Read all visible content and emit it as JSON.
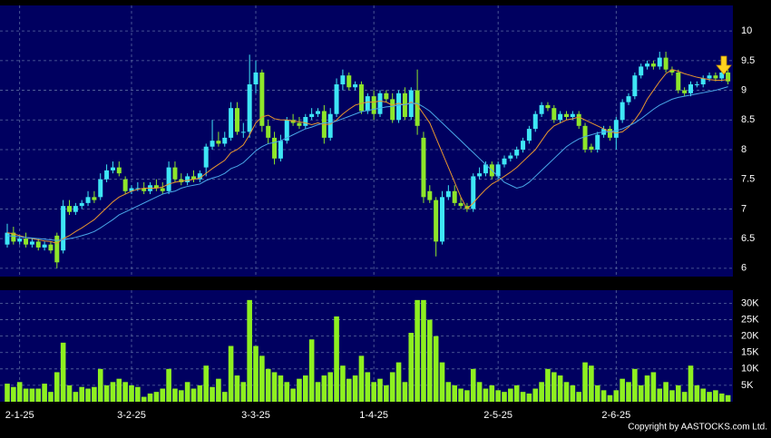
{
  "chart_data": [
    {
      "type": "candlestick",
      "open": [
        6.4,
        6.6,
        6.45,
        6.5,
        6.4,
        6.45,
        6.35,
        6.4,
        6.55,
        6.3,
        7.05,
        6.95,
        7.05,
        7.1,
        7.2,
        7.2,
        7.5,
        7.65,
        7.7,
        7.5,
        7.3,
        7.35,
        7.35,
        7.3,
        7.4,
        7.35,
        7.3,
        7.7,
        7.5,
        7.45,
        7.55,
        7.5,
        7.7,
        8.05,
        8.15,
        8.1,
        8.2,
        8.7,
        8.3,
        8.3,
        9.1,
        9.3,
        8.4,
        8.2,
        7.85,
        8.15,
        8.5,
        8.45,
        8.4,
        8.55,
        8.6,
        8.65,
        8.2,
        8.6,
        9.1,
        9.25,
        9.05,
        9.1,
        8.65,
        8.9,
        8.6,
        8.95,
        8.85,
        8.5,
        8.95,
        8.55,
        9.0,
        8.2,
        7.3,
        7.15,
        6.45,
        7.2,
        7.3,
        7.1,
        7.05,
        7.0,
        7.55,
        7.6,
        7.75,
        7.55,
        7.75,
        7.85,
        7.9,
        8.0,
        8.15,
        8.35,
        8.6,
        8.75,
        8.7,
        8.5,
        8.6,
        8.55,
        8.6,
        8.4,
        8.05,
        8.0,
        8.25,
        8.35,
        8.2,
        8.5,
        8.8,
        8.9,
        9.25,
        9.4,
        9.45,
        9.4,
        9.55,
        9.35,
        9.3,
        9.0,
        8.95,
        9.1,
        9.1,
        9.2,
        9.25,
        9.2,
        9.3
      ],
      "high": [
        6.75,
        6.7,
        6.55,
        6.6,
        6.5,
        6.5,
        6.45,
        6.45,
        6.6,
        7.15,
        7.15,
        7.1,
        7.15,
        7.3,
        7.3,
        7.6,
        7.75,
        7.8,
        7.8,
        7.55,
        7.4,
        7.45,
        7.45,
        7.45,
        7.5,
        7.45,
        7.8,
        7.8,
        7.6,
        7.6,
        7.65,
        7.65,
        8.1,
        8.5,
        8.3,
        8.3,
        8.8,
        8.8,
        8.45,
        9.6,
        9.5,
        9.35,
        8.5,
        8.3,
        8.25,
        8.55,
        8.6,
        8.55,
        8.6,
        8.7,
        8.7,
        8.75,
        8.7,
        9.2,
        9.35,
        9.3,
        9.15,
        9.15,
        8.95,
        9.0,
        9.0,
        9.0,
        8.95,
        9.0,
        9.05,
        9.05,
        9.35,
        8.3,
        7.4,
        7.2,
        7.3,
        7.4,
        7.4,
        7.2,
        7.1,
        7.6,
        7.7,
        7.8,
        7.8,
        7.8,
        7.9,
        7.95,
        8.05,
        8.2,
        8.4,
        8.65,
        8.8,
        8.8,
        8.75,
        8.65,
        8.65,
        8.65,
        8.65,
        8.45,
        8.1,
        8.3,
        8.4,
        8.4,
        8.55,
        8.85,
        8.95,
        9.3,
        9.45,
        9.5,
        9.5,
        9.65,
        9.65,
        9.4,
        9.35,
        9.05,
        9.15,
        9.15,
        9.25,
        9.3,
        9.3,
        9.35,
        9.35
      ],
      "low": [
        6.35,
        6.4,
        6.4,
        6.35,
        6.35,
        6.3,
        6.3,
        6.25,
        6.0,
        6.25,
        6.9,
        6.9,
        7.0,
        7.05,
        7.1,
        7.15,
        7.45,
        7.6,
        7.55,
        7.25,
        7.25,
        7.3,
        7.25,
        7.25,
        7.3,
        7.25,
        7.25,
        7.45,
        7.4,
        7.4,
        7.45,
        7.45,
        7.55,
        8.0,
        8.05,
        8.05,
        8.15,
        8.25,
        8.2,
        8.2,
        8.95,
        8.3,
        8.1,
        7.75,
        7.8,
        8.1,
        8.4,
        8.35,
        8.35,
        8.5,
        8.55,
        8.1,
        8.15,
        8.55,
        9.0,
        9.0,
        9.0,
        8.6,
        8.6,
        8.5,
        8.55,
        8.8,
        8.45,
        8.45,
        8.5,
        8.5,
        8.25,
        7.1,
        7.1,
        6.2,
        6.4,
        7.15,
        7.05,
        7.0,
        6.95,
        6.95,
        7.5,
        7.55,
        7.5,
        7.5,
        7.7,
        7.8,
        7.85,
        7.95,
        8.1,
        8.3,
        8.55,
        8.65,
        8.45,
        8.45,
        8.5,
        8.5,
        8.35,
        7.95,
        7.95,
        7.95,
        8.2,
        8.15,
        8.0,
        8.45,
        8.75,
        8.85,
        9.2,
        9.35,
        9.35,
        9.35,
        9.3,
        9.25,
        8.95,
        8.9,
        8.9,
        9.05,
        9.05,
        9.15,
        9.15,
        9.15,
        9.1
      ],
      "close": [
        6.6,
        6.45,
        6.5,
        6.4,
        6.45,
        6.35,
        6.4,
        6.3,
        6.1,
        7.05,
        6.95,
        7.05,
        7.1,
        7.2,
        7.15,
        7.5,
        7.65,
        7.7,
        7.6,
        7.3,
        7.35,
        7.35,
        7.3,
        7.4,
        7.35,
        7.3,
        7.7,
        7.5,
        7.45,
        7.55,
        7.5,
        7.6,
        8.05,
        8.15,
        8.1,
        8.2,
        8.7,
        8.3,
        8.3,
        9.1,
        9.3,
        8.4,
        8.2,
        7.85,
        8.15,
        8.5,
        8.45,
        8.4,
        8.55,
        8.6,
        8.65,
        8.2,
        8.6,
        9.1,
        9.25,
        9.05,
        9.1,
        8.65,
        8.9,
        8.6,
        8.95,
        8.85,
        8.5,
        8.95,
        8.55,
        9.0,
        8.4,
        7.2,
        7.15,
        6.45,
        7.2,
        7.3,
        7.1,
        7.05,
        7.0,
        7.55,
        7.6,
        7.75,
        7.55,
        7.75,
        7.85,
        7.9,
        8.0,
        8.15,
        8.35,
        8.6,
        8.75,
        8.7,
        8.5,
        8.6,
        8.55,
        8.6,
        8.4,
        8.0,
        8.0,
        8.25,
        8.35,
        8.2,
        8.5,
        8.8,
        8.9,
        9.25,
        9.4,
        9.45,
        9.4,
        9.55,
        9.35,
        9.3,
        9.0,
        8.95,
        9.1,
        9.1,
        9.2,
        9.25,
        9.2,
        9.3,
        9.15
      ],
      "up_color": "#3ee6f5",
      "down_color": "#8ee62a",
      "lines": [
        {
          "color": "#e8962e",
          "values": [
            6.6,
            6.58,
            6.55,
            6.52,
            6.5,
            6.48,
            6.46,
            6.45,
            6.42,
            6.5,
            6.55,
            6.62,
            6.68,
            6.75,
            6.82,
            6.92,
            7.02,
            7.12,
            7.2,
            7.25,
            7.3,
            7.33,
            7.35,
            7.35,
            7.35,
            7.37,
            7.42,
            7.45,
            7.47,
            7.48,
            7.5,
            7.52,
            7.6,
            7.68,
            7.75,
            7.82,
            7.95,
            8.0,
            8.08,
            8.25,
            8.45,
            8.55,
            8.58,
            8.52,
            8.5,
            8.5,
            8.48,
            8.47,
            8.45,
            8.42,
            8.45,
            8.42,
            8.43,
            8.5,
            8.6,
            8.68,
            8.75,
            8.78,
            8.8,
            8.8,
            8.82,
            8.8,
            8.75,
            8.78,
            8.75,
            8.8,
            8.75,
            8.6,
            8.45,
            8.2,
            7.95,
            7.7,
            7.45,
            7.2,
            7.0,
            7.1,
            7.22,
            7.33,
            7.42,
            7.48,
            7.55,
            7.62,
            7.7,
            7.8,
            7.9,
            8.0,
            8.15,
            8.3,
            8.4,
            8.45,
            8.5,
            8.52,
            8.55,
            8.5,
            8.45,
            8.4,
            8.35,
            8.3,
            8.28,
            8.3,
            8.38,
            8.5,
            8.65,
            8.85,
            9.0,
            9.15,
            9.28,
            9.35,
            9.32,
            9.28,
            9.25,
            9.22,
            9.2,
            9.18,
            9.17,
            9.17,
            9.18
          ]
        },
        {
          "color": "#4aa8e8",
          "values": [
            6.55,
            6.54,
            6.53,
            6.52,
            6.51,
            6.5,
            6.49,
            6.48,
            6.47,
            6.48,
            6.5,
            6.52,
            6.55,
            6.58,
            6.62,
            6.68,
            6.75,
            6.82,
            6.9,
            6.95,
            7.0,
            7.05,
            7.1,
            7.15,
            7.2,
            7.25,
            7.28,
            7.3,
            7.35,
            7.38,
            7.4,
            7.42,
            7.48,
            7.52,
            7.55,
            7.6,
            7.68,
            7.72,
            7.78,
            7.88,
            7.98,
            8.05,
            8.1,
            8.12,
            8.15,
            8.2,
            8.25,
            8.3,
            8.35,
            8.38,
            8.42,
            8.45,
            8.45,
            8.48,
            8.52,
            8.56,
            8.6,
            8.64,
            8.66,
            8.68,
            8.7,
            8.72,
            8.73,
            8.75,
            8.76,
            8.78,
            8.78,
            8.72,
            8.65,
            8.55,
            8.45,
            8.35,
            8.25,
            8.15,
            8.05,
            7.95,
            7.85,
            7.75,
            7.65,
            7.55,
            7.45,
            7.4,
            7.35,
            7.38,
            7.45,
            7.55,
            7.65,
            7.75,
            7.85,
            7.95,
            8.05,
            8.12,
            8.18,
            8.22,
            8.25,
            8.28,
            8.3,
            8.3,
            8.32,
            8.35,
            8.4,
            8.45,
            8.52,
            8.6,
            8.68,
            8.75,
            8.8,
            8.85,
            8.88,
            8.9,
            8.92,
            8.94,
            8.96,
            8.98,
            9.0,
            9.03,
            9.06
          ]
        }
      ],
      "ylim": [
        5.86,
        10.43
      ],
      "yticks": [
        6,
        6.5,
        7,
        7.5,
        8,
        8.5,
        9,
        9.5,
        10
      ],
      "grid": true
    },
    {
      "type": "bar",
      "categories": [
        null,
        null,
        "2-1-25",
        null,
        null,
        null,
        null,
        null,
        null,
        null,
        null,
        null,
        null,
        null,
        null,
        null,
        null,
        null,
        null,
        null,
        "3-2-25",
        null,
        null,
        null,
        null,
        null,
        null,
        null,
        null,
        null,
        null,
        null,
        null,
        null,
        null,
        null,
        null,
        null,
        null,
        null,
        "3-3-25",
        null,
        null,
        null,
        null,
        null,
        null,
        null,
        null,
        null,
        null,
        null,
        null,
        null,
        null,
        null,
        null,
        null,
        null,
        "1-4-25",
        null,
        null,
        null,
        null,
        null,
        null,
        null,
        null,
        null,
        null,
        null,
        null,
        null,
        null,
        null,
        null,
        null,
        null,
        null,
        "2-5-25",
        null,
        null,
        null,
        null,
        null,
        null,
        null,
        null,
        null,
        null,
        null,
        null,
        null,
        null,
        null,
        null,
        null,
        null,
        "2-6-25",
        null,
        null,
        null,
        null,
        null,
        null,
        null,
        null,
        null,
        null,
        null,
        null,
        null,
        null,
        null,
        null,
        null,
        null
      ],
      "values": [
        5500,
        4500,
        6000,
        4000,
        4000,
        4000,
        5500,
        3000,
        9000,
        18000,
        5000,
        3000,
        4500,
        4000,
        4500,
        10000,
        5000,
        6000,
        7000,
        6000,
        5000,
        4500,
        1500,
        2500,
        3000,
        4000,
        10000,
        4000,
        3500,
        6000,
        4000,
        5000,
        11000,
        4500,
        7000,
        3000,
        17000,
        8000,
        6000,
        31000,
        17000,
        14000,
        10000,
        9000,
        8000,
        6000,
        4000,
        7000,
        8000,
        19000,
        6000,
        8000,
        9000,
        26000,
        11000,
        7000,
        8000,
        14000,
        9000,
        6000,
        7000,
        5000,
        9000,
        12000,
        6000,
        21000,
        31000,
        31000,
        25000,
        20000,
        12000,
        6000,
        5000,
        4000,
        3500,
        10000,
        6000,
        4000,
        5000,
        3500,
        3000,
        4000,
        5000,
        3000,
        2500,
        4000,
        6000,
        10000,
        9000,
        8000,
        6000,
        5000,
        3000,
        12000,
        11000,
        5000,
        3500,
        2000,
        3500,
        7000,
        6000,
        10000,
        5000,
        8000,
        9000,
        4000,
        6000,
        3500,
        5000,
        3000,
        11000,
        5000,
        4000,
        3000,
        3500,
        2500,
        2000
      ],
      "color": "#8ef020",
      "ylim": [
        0,
        34000
      ],
      "yticks": [
        {
          "value": 5000,
          "label": "5K"
        },
        {
          "value": 10000,
          "label": "10K"
        },
        {
          "value": 15000,
          "label": "15K"
        },
        {
          "value": 20000,
          "label": "20K"
        },
        {
          "value": 25000,
          "label": "25K"
        },
        {
          "value": 30000,
          "label": "30K"
        }
      ],
      "grid": true
    }
  ],
  "copyright": "Copyright by AASTOCKS.com Ltd."
}
